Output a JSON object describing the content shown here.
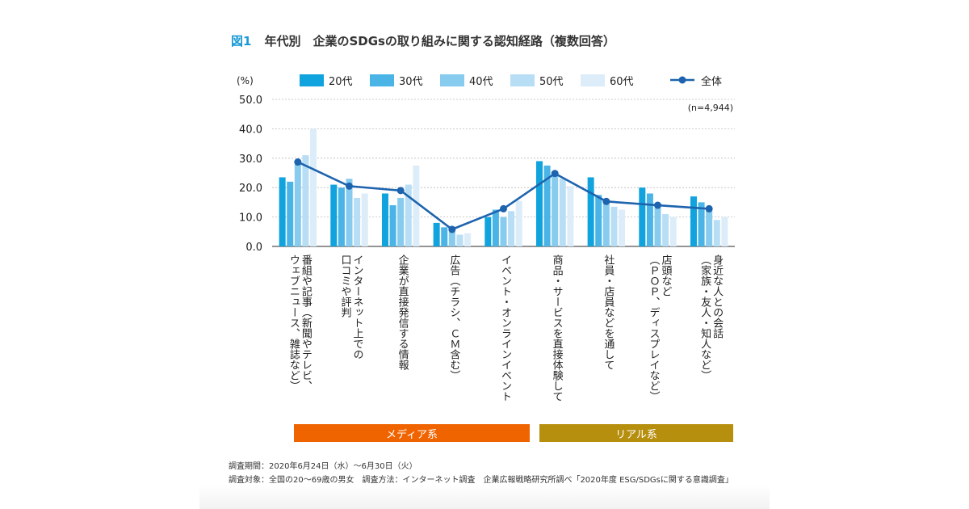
{
  "title": {
    "fig_label": "図1",
    "text": "年代別　企業のSDGsの取り組みに関する認知経路（複数回答）"
  },
  "colors": {
    "s20": "#11a3dd",
    "s30": "#4bb4e6",
    "s40": "#87cbef",
    "s50": "#b8def5",
    "s60": "#dcedf9",
    "line": "#1d63ae",
    "grid": "#bbbbbb",
    "media": "#f06400",
    "real": "#b78f0f"
  },
  "chart_data": {
    "type": "bar",
    "y_unit_label": "(%)",
    "sample_note": "(n=4,944)",
    "ylim": [
      0,
      50
    ],
    "yticks": [
      "0.0",
      "10.0",
      "20.0",
      "30.0",
      "40.0",
      "50.0"
    ],
    "categories": [
      "番組や記事（新聞やテレビ、ウェブニュース、雑誌など）",
      "インターネット上での口コミや評判",
      "企業が直接発信する情報",
      "広告（チラシ、CM含む）",
      "イベント・オンラインイベント",
      "商品・サービスを直接体験して",
      "社員・店員などを通して",
      "店頭など（POP、ディスプレイなど）",
      "身近な人との会話（家族・友人・知人など）"
    ],
    "category_label_lines": [
      [
        "番組や記事（新聞やテレビ、",
        "ウェブニュース、雑誌など）"
      ],
      [
        "インターネット上での",
        "口コミや評判"
      ],
      [
        "企業が直接発信する情報"
      ],
      [
        "広告（チラシ、ＣＭ含む）"
      ],
      [
        "イベント・オンラインイベント"
      ],
      [
        "商品・サービスを直接体験して"
      ],
      [
        "社員・店員などを通して"
      ],
      [
        "店頭など",
        "（ＰＯＰ、ディスプレイなど）"
      ],
      [
        "身近な人との会話",
        "（家族・友人・知人など）"
      ]
    ],
    "series": [
      {
        "name": "20代",
        "values": [
          23.5,
          21.0,
          18.0,
          8.0,
          10.0,
          29.0,
          23.5,
          20.0,
          17.0
        ]
      },
      {
        "name": "30代",
        "values": [
          22.0,
          20.0,
          14.0,
          6.5,
          12.5,
          27.5,
          17.5,
          18.0,
          15.0
        ]
      },
      {
        "name": "40代",
        "values": [
          28.0,
          23.0,
          16.5,
          5.5,
          10.0,
          25.5,
          15.5,
          14.5,
          13.0
        ]
      },
      {
        "name": "50代",
        "values": [
          31.0,
          16.5,
          21.0,
          4.0,
          12.0,
          23.0,
          13.5,
          11.0,
          9.0
        ]
      },
      {
        "name": "60代",
        "values": [
          40.0,
          18.0,
          27.5,
          4.5,
          15.5,
          20.5,
          12.5,
          10.0,
          10.0
        ]
      }
    ],
    "line_series": {
      "name": "全体",
      "values": [
        28.7,
        20.5,
        19.0,
        5.8,
        12.8,
        24.8,
        15.3,
        14.0,
        12.8
      ]
    },
    "groups": [
      {
        "label": "メディア系",
        "from": 0,
        "to": 4
      },
      {
        "label": "リアル系",
        "from": 5,
        "to": 8
      }
    ]
  },
  "footnotes": {
    "line1": "調査期間：2020年6月24日（水）～6月30日（火）",
    "line2": "調査対象：全国の20～69歳の男女　調査方法：インターネット調査　企業広報戦略研究所調べ「2020年度 ESG/SDGsに関する意識調査」"
  }
}
